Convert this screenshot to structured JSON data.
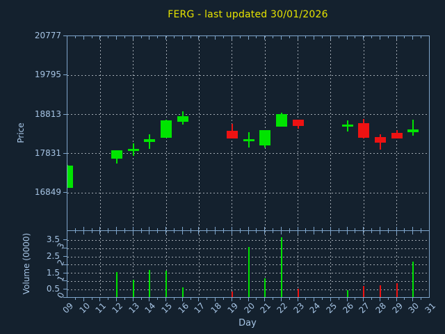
{
  "title": "FERG - last updated 30/01/2026",
  "colors": {
    "background": "#14212e",
    "frame": "#7fa6cc",
    "grid": "#c6ccd4",
    "text": "#a6c4e4",
    "title": "#e6e300",
    "up": "#00e400",
    "down": "#ee1212"
  },
  "axes": {
    "price": {
      "label": "Price",
      "tick_labels": [
        "20777",
        "19795",
        "18813",
        "17831",
        "16849"
      ]
    },
    "volume": {
      "label": "Volume (0000)",
      "decimal_tick_labels": [
        "3.5",
        "2.5",
        "1.5",
        "0.5"
      ],
      "integer_tick_labels": [
        "3",
        "2",
        "1",
        "0"
      ]
    },
    "day": {
      "label": "Day",
      "tick_labels": [
        "09",
        "10",
        "11",
        "12",
        "13",
        "14",
        "15",
        "16",
        "17",
        "18",
        "19",
        "20",
        "21",
        "22",
        "23",
        "24",
        "25",
        "26",
        "27",
        "28",
        "29",
        "30",
        "31"
      ]
    }
  },
  "chart_data": {
    "type": "candlestick",
    "title": "FERG - last updated 30/01/2026",
    "xlabel": "Day",
    "ylabel_price": "Price",
    "ylabel_volume": "Volume (0000)",
    "x_range": [
      9,
      31
    ],
    "price_axis_ticks": [
      16849,
      17831,
      18813,
      19795,
      20777
    ],
    "volume_axis_ticks": [
      0,
      0.5,
      1,
      1.5,
      2,
      2.5,
      3,
      3.5
    ],
    "grid_days": [
      11,
      13,
      15,
      17,
      19,
      21,
      23,
      25,
      27,
      29
    ],
    "legend": "none",
    "grid": "dashed",
    "candles": [
      {
        "day": 9,
        "open": 16970,
        "high": 17540,
        "low": 16965,
        "close": 17535,
        "volume": null
      },
      {
        "day": 12,
        "open": 17710,
        "high": 17920,
        "low": 17580,
        "close": 17915,
        "volume": 1.55
      },
      {
        "day": 13,
        "open": 17900,
        "high": 18090,
        "low": 17770,
        "close": 17945,
        "volume": 1.1
      },
      {
        "day": 14,
        "open": 18120,
        "high": 18320,
        "low": 17945,
        "close": 18190,
        "volume": 1.7
      },
      {
        "day": 15,
        "open": 18235,
        "high": 18675,
        "low": 18230,
        "close": 18670,
        "volume": 1.65
      },
      {
        "day": 16,
        "open": 18625,
        "high": 18885,
        "low": 18565,
        "close": 18775,
        "volume": 0.65
      },
      {
        "day": 19,
        "open": 18410,
        "high": 18585,
        "low": 18210,
        "close": 18215,
        "volume": 0.4
      },
      {
        "day": 20,
        "open": 18135,
        "high": 18370,
        "low": 17990,
        "close": 18195,
        "volume": 3.1
      },
      {
        "day": 21,
        "open": 18040,
        "high": 18425,
        "low": 17990,
        "close": 18420,
        "volume": 1.2
      },
      {
        "day": 22,
        "open": 18510,
        "high": 18860,
        "low": 18505,
        "close": 18815,
        "volume": 3.7
      },
      {
        "day": 23,
        "open": 18680,
        "high": 18685,
        "low": 18450,
        "close": 18525,
        "volume": 0.55
      },
      {
        "day": 26,
        "open": 18510,
        "high": 18665,
        "low": 18390,
        "close": 18565,
        "volume": 0.45
      },
      {
        "day": 27,
        "open": 18600,
        "high": 18700,
        "low": 18215,
        "close": 18235,
        "volume": 0.7
      },
      {
        "day": 28,
        "open": 18250,
        "high": 18320,
        "low": 17925,
        "close": 18100,
        "volume": 0.75
      },
      {
        "day": 29,
        "open": 18350,
        "high": 18425,
        "low": 18210,
        "close": 18215,
        "volume": 0.9
      },
      {
        "day": 30,
        "open": 18370,
        "high": 18680,
        "low": 18275,
        "close": 18440,
        "volume": 2.2
      }
    ]
  }
}
